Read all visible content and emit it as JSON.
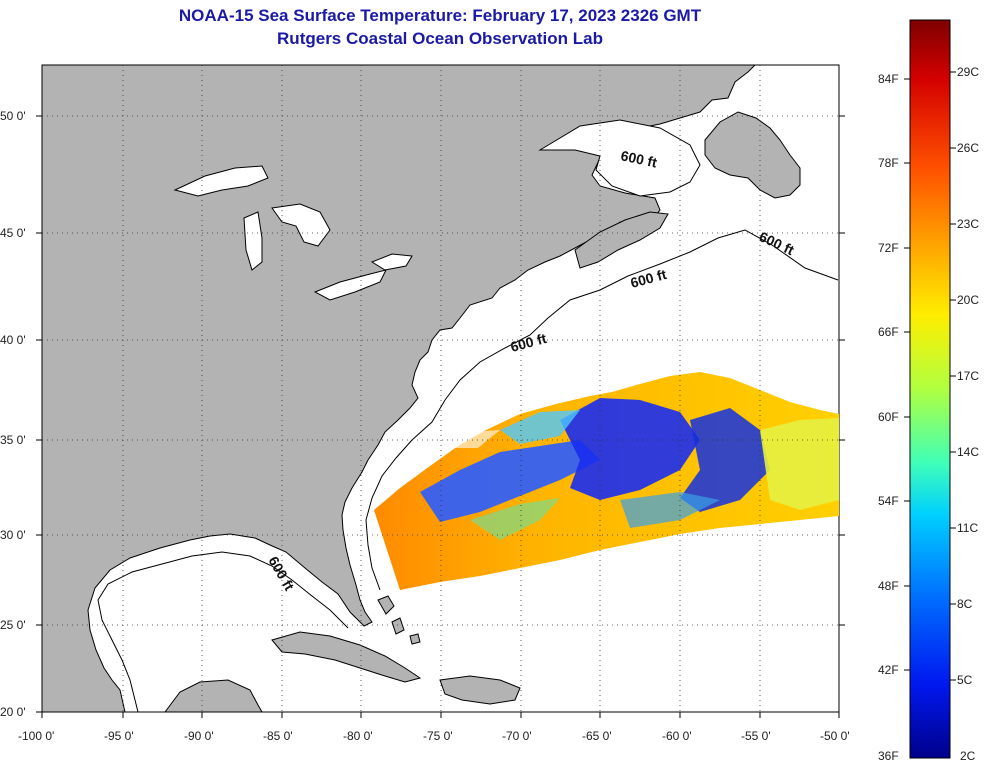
{
  "header": {
    "title": "NOAA-15 Sea Surface Temperature:  February 17, 2023 2326 GMT",
    "subtitle": "Rutgers Coastal Ocean Observation Lab"
  },
  "map": {
    "lat_ticks": [
      "50 0'",
      "45 0'",
      "40 0'",
      "35 0'",
      "30 0'",
      "25 0'",
      "20 0'"
    ],
    "lon_ticks": [
      "-100 0'",
      "-95 0'",
      "-90 0'",
      "-85 0'",
      "-80 0'",
      "-75 0'",
      "-70 0'",
      "-65 0'",
      "-60 0'",
      "-55 0'",
      "-50 0'"
    ],
    "contour_labels": [
      "600 ft",
      "600 ft",
      "600 ft",
      "600 ft",
      "600 ft"
    ],
    "land_color": "#b3b3b3",
    "ocean_color": "#ffffff"
  },
  "colorbar": {
    "fahrenheit": [
      "84F",
      "78F",
      "72F",
      "66F",
      "60F",
      "54F",
      "48F",
      "42F",
      "36F"
    ],
    "celsius": [
      "29C",
      "26C",
      "23C",
      "20C",
      "17C",
      "14C",
      "11C",
      "8C",
      "5C",
      "2C"
    ],
    "colormap": [
      "#7f0000",
      "#e00000",
      "#ff6a00",
      "#ffd200",
      "#e6ff1a",
      "#9cff5c",
      "#38ffc4",
      "#00c8ff",
      "#0070ff",
      "#0018ff",
      "#00008f"
    ]
  }
}
